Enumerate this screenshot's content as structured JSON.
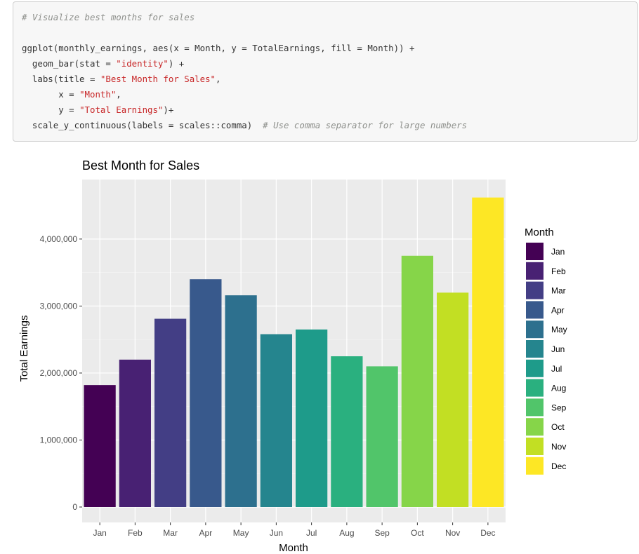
{
  "code": {
    "comment": "# Visualize best months for sales",
    "lines": [
      [
        {
          "t": "ggplot(monthly_earnings, aes(x = Month, y = TotalEarnings, fill = Month)) +",
          "k": "code"
        }
      ],
      [
        {
          "t": "  geom_bar(stat = ",
          "k": "code"
        },
        {
          "t": "\"identity\"",
          "k": "string"
        },
        {
          "t": ") +",
          "k": "code"
        }
      ],
      [
        {
          "t": "  labs(title = ",
          "k": "code"
        },
        {
          "t": "\"Best Month for Sales\"",
          "k": "string"
        },
        {
          "t": ",",
          "k": "code"
        }
      ],
      [
        {
          "t": "       x = ",
          "k": "code"
        },
        {
          "t": "\"Month\"",
          "k": "string"
        },
        {
          "t": ",",
          "k": "code"
        }
      ],
      [
        {
          "t": "       y = ",
          "k": "code"
        },
        {
          "t": "\"Total Earnings\"",
          "k": "string"
        },
        {
          "t": ")+",
          "k": "code"
        }
      ],
      [
        {
          "t": "  scale_y_continuous(labels = scales::comma)  ",
          "k": "code"
        },
        {
          "t": "# Use comma separator for large numbers",
          "k": "comment"
        }
      ]
    ]
  },
  "chart_data": {
    "type": "bar",
    "title": "Best Month for Sales",
    "xlabel": "Month",
    "ylabel": "Total Earnings",
    "categories": [
      "Jan",
      "Feb",
      "Mar",
      "Apr",
      "May",
      "Jun",
      "Jul",
      "Aug",
      "Sep",
      "Oct",
      "Nov",
      "Dec"
    ],
    "values": [
      1820000,
      2200000,
      2810000,
      3400000,
      3160000,
      2580000,
      2650000,
      2250000,
      2100000,
      3750000,
      3200000,
      4620000
    ],
    "colors": [
      "#440154",
      "#482173",
      "#433e85",
      "#38598c",
      "#2d708e",
      "#25858e",
      "#1e9b8a",
      "#2ab07f",
      "#51c56a",
      "#86d549",
      "#c2df23",
      "#fde725"
    ],
    "ylim": [
      0,
      4700000
    ],
    "yticks": [
      0,
      1000000,
      2000000,
      3000000,
      4000000
    ],
    "ytick_labels": [
      "0",
      "1,000,000",
      "2,000,000",
      "3,000,000",
      "4,000,000"
    ],
    "legend_title": "Month",
    "legend_position": "right",
    "grid": true,
    "panel_background": "#ebebeb"
  }
}
